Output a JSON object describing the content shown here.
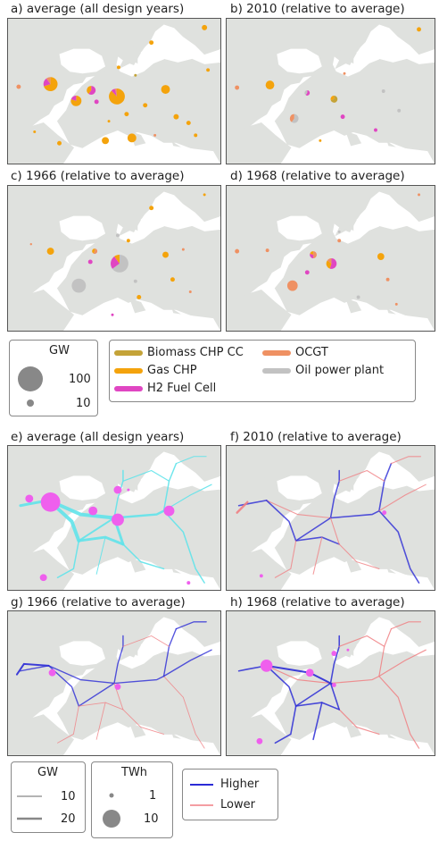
{
  "colors": {
    "land": "#dfe1de",
    "sea": "#ffffff",
    "biomass": "#c4a338",
    "gas": "#f4a30c",
    "h2": "#e046c2",
    "ocgt": "#ef9163",
    "oil": "#c2c2c2",
    "cyan": "#61e3ea",
    "h2node": "#ef5fed",
    "higher": "#2b2bd6",
    "lower": "#f07f83",
    "legend_marker": "#888888"
  },
  "panels": {
    "a": {
      "title": "a) average (all design years)"
    },
    "b": {
      "title": "b) 2010 (relative to average)"
    },
    "c": {
      "title": "c) 1966 (relative to average)"
    },
    "d": {
      "title": "d) 1968 (relative to average)"
    },
    "e": {
      "title": "e) average (all design years)"
    },
    "f": {
      "title": "f) 2010 (relative to average)"
    },
    "g": {
      "title": "g) 1966 (relative to average)"
    },
    "h": {
      "title": "h) 1968 (relative to average)"
    }
  },
  "legend_top": {
    "size_title": "GW",
    "size_big": "100",
    "size_small": "10",
    "techs": [
      {
        "label": "Biomass CHP CC",
        "icon": "biomass"
      },
      {
        "label": "Gas CHP",
        "icon": "gas"
      },
      {
        "label": "H2 Fuel Cell",
        "icon": "h2"
      },
      {
        "label": "OCGT",
        "icon": "ocgt"
      },
      {
        "label": "Oil power plant",
        "icon": "oil"
      }
    ]
  },
  "legend_bottom": {
    "gw_title": "GW",
    "gw_small": "10",
    "gw_big": "20",
    "twh_title": "TWh",
    "twh_small": "1",
    "twh_big": "10",
    "higher": "Higher",
    "lower": "Lower"
  }
}
